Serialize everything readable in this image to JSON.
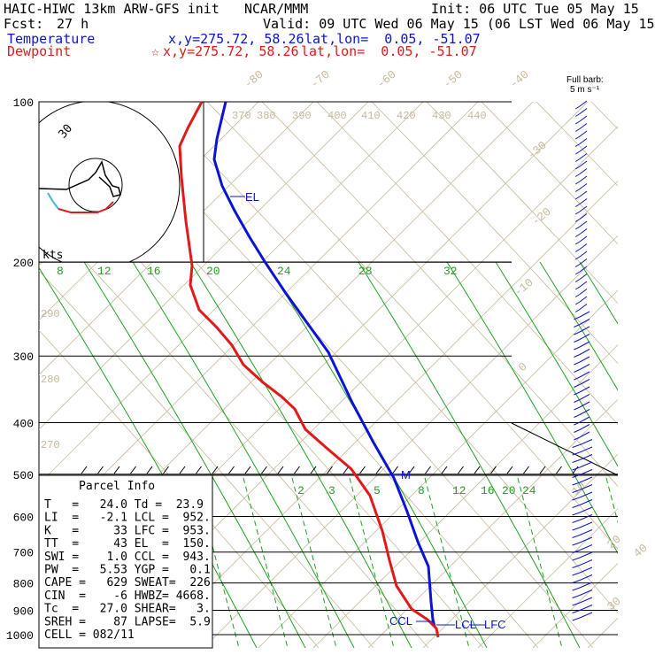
{
  "header": {
    "model": "HAIC-HIWC 13km ARW-GFS init",
    "center": "NCAR/MMM",
    "init": "Init: 06 UTC Tue 05 May 15",
    "fcst_label": "Fcst:",
    "fcst_value": "27 h",
    "valid": "Valid: 09 UTC Wed 06 May 15 (06 LST Wed 06 May 15)",
    "temp_label": "Temperature",
    "temp_xy": "x,y=275.72, 58.26",
    "temp_latlon": "lat,lon=  0.05, -51.07",
    "dew_label": "Dewpoint",
    "dew_marker": "☆",
    "dew_xy": "x,y=275.72, 58.26",
    "dew_latlon": "lat,lon=  0.05, -51.07"
  },
  "colors": {
    "temperature": "#0a14d2",
    "dewpoint": "#e01a1a",
    "mixing": "#22a022",
    "dry_adiabat": "#c8b89a",
    "isotherm": "#c8b89a"
  },
  "hodograph": {
    "unit_label": "kts",
    "ring_label": "30"
  },
  "barb_legend": {
    "title": "Full barb:",
    "unit": "5 m s⁻¹"
  },
  "parcel": {
    "title": "Parcel Info",
    "lines": [
      "T   =   24.0 Td =  23.9",
      "LI  =   -2.1 LCL =  952.",
      "K   =     33 LFC =  953.",
      "TT  =     43 EL  =  150.",
      "SWI =    1.0 CCL =  943.",
      "PW  =   5.53 YGP =   0.1",
      "CAPE =   629 SWEAT=  226",
      "CIN  =    -6 HWBZ= 4668.",
      "Tc  =   27.0 SHEAR=   3.",
      "SREH =    87 LAPSE=  5.9",
      "CELL = 082/11"
    ]
  },
  "chart_data": {
    "type": "line",
    "title": "",
    "xlabel": "",
    "ylabel": "",
    "pressure_levels": [
      100,
      200,
      300,
      400,
      500,
      600,
      700,
      800,
      900,
      1000
    ],
    "ylim": [
      1000,
      100
    ],
    "y_scale": "log",
    "isotherm_labels": [
      "-80",
      "-70",
      "-60",
      "-50",
      "-40",
      "-30",
      "-20",
      "-10",
      "0",
      "10",
      "20",
      "30",
      "40"
    ],
    "theta_labels": [
      "370",
      "380",
      "390",
      "400",
      "410",
      "420",
      "430",
      "440",
      "290",
      "280",
      "270"
    ],
    "mixing_ratio_labels_upper": [
      "8",
      "12",
      "16",
      "20",
      "24",
      "28",
      "32"
    ],
    "mixing_ratio_labels_lower": [
      "2",
      "3",
      "5",
      "8",
      "12",
      "16",
      "20",
      "24"
    ],
    "series": [
      {
        "name": "Temperature",
        "points": [
          [
            255,
            115
          ],
          [
            245,
            157
          ],
          [
            242,
            180
          ],
          [
            251,
            210
          ],
          [
            265,
            238
          ],
          [
            282,
            268
          ],
          [
            300,
            297
          ],
          [
            322,
            330
          ],
          [
            345,
            362
          ],
          [
            371,
            398
          ],
          [
            398,
            455
          ],
          [
            422,
            500
          ],
          [
            445,
            540
          ],
          [
            460,
            578
          ],
          [
            472,
            612
          ],
          [
            484,
            640
          ],
          [
            487,
            680
          ],
          [
            489,
            700
          ],
          [
            491,
            708
          ]
        ]
      },
      {
        "name": "Dewpoint",
        "points": [
          [
            228,
            115
          ],
          [
            212,
            145
          ],
          [
            203,
            165
          ],
          [
            205,
            200
          ],
          [
            210,
            250
          ],
          [
            217,
            300
          ],
          [
            215,
            322
          ],
          [
            225,
            350
          ],
          [
            245,
            370
          ],
          [
            262,
            390
          ],
          [
            275,
            412
          ],
          [
            297,
            432
          ],
          [
            318,
            448
          ],
          [
            333,
            462
          ],
          [
            345,
            485
          ],
          [
            370,
            507
          ],
          [
            397,
            530
          ],
          [
            418,
            560
          ],
          [
            432,
            600
          ],
          [
            440,
            633
          ],
          [
            448,
            662
          ],
          [
            465,
            688
          ],
          [
            483,
            700
          ],
          [
            493,
            710
          ],
          [
            495,
            720
          ]
        ]
      }
    ],
    "annotations": [
      "EL",
      "M",
      "CCL",
      "LCL",
      "LFC"
    ],
    "grid": true
  }
}
